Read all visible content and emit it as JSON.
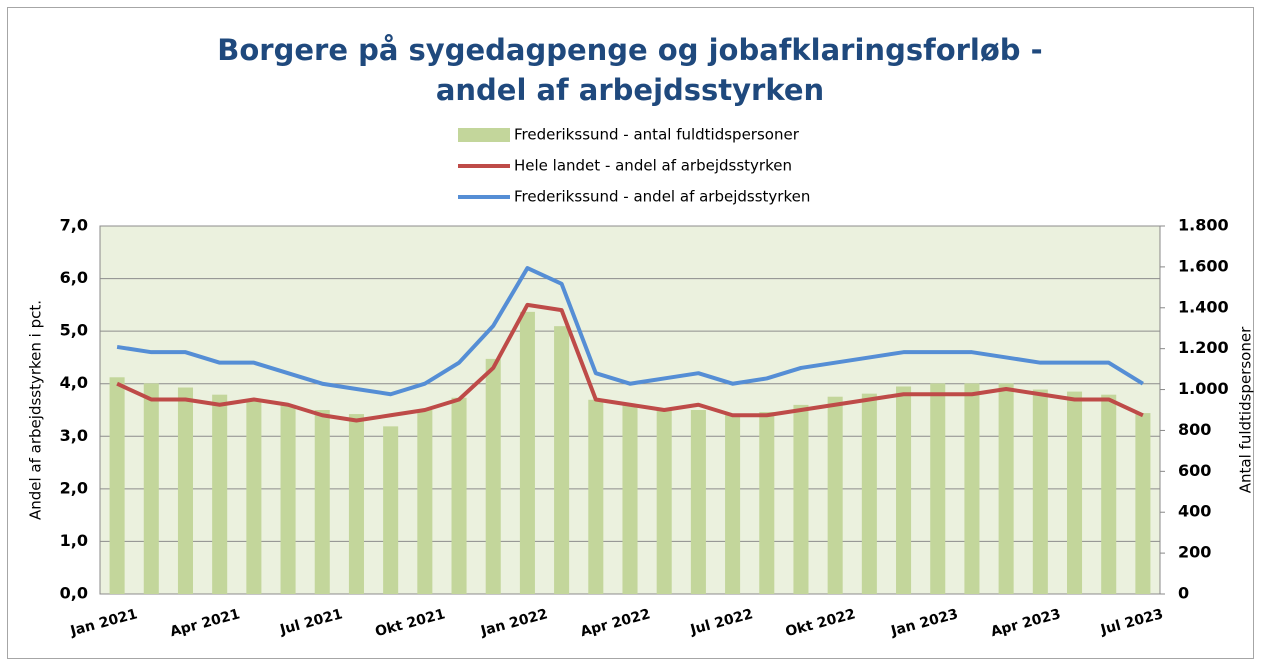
{
  "chart_data": {
    "type": "bar-line",
    "title": "Borgere på sygedagpenge og jobafklaringsforløb - andel af arbejdsstyrken",
    "y_label": "Andel af arbejdsstyrken i pct.",
    "y2_label": "Antal fuldtidspersoner",
    "categories": [
      "Jan 2021",
      null,
      null,
      "Apr 2021",
      null,
      null,
      "Jul 2021",
      null,
      null,
      "Okt 2021",
      null,
      null,
      "Jan 2022",
      null,
      null,
      "Apr 2022",
      null,
      null,
      "Jul 2022",
      null,
      null,
      "Okt 2022",
      null,
      null,
      "Jan 2023",
      null,
      null,
      "Apr 2023",
      null,
      null,
      "Jul 2023"
    ],
    "series": [
      {
        "name": "Frederikssund - antal fuldtidspersoner",
        "type": "bar",
        "axis": "y2",
        "color": "#c3d69b",
        "values": [
          1060,
          1030,
          1010,
          975,
          950,
          925,
          900,
          880,
          820,
          900,
          960,
          1150,
          1380,
          1310,
          950,
          925,
          900,
          900,
          875,
          890,
          925,
          965,
          980,
          1015,
          1030,
          1030,
          1030,
          1000,
          990,
          975,
          885
        ]
      },
      {
        "name": "Hele landet - andel af arbejdsstyrken",
        "type": "line",
        "color": "#be4b48",
        "values": [
          4.0,
          3.7,
          3.7,
          3.6,
          3.7,
          3.6,
          3.4,
          3.3,
          3.4,
          3.5,
          3.7,
          4.3,
          5.5,
          5.4,
          3.7,
          3.6,
          3.5,
          3.6,
          3.4,
          3.4,
          3.5,
          3.6,
          3.7,
          3.8,
          3.8,
          3.8,
          3.9,
          3.8,
          3.7,
          3.7,
          3.4
        ]
      },
      {
        "name": "Frederikssund - andel af arbejdsstyrken",
        "type": "line",
        "color": "#558ed5",
        "values": [
          4.7,
          4.6,
          4.6,
          4.4,
          4.4,
          4.2,
          4.0,
          3.9,
          3.8,
          4.0,
          4.4,
          5.1,
          6.2,
          5.9,
          4.2,
          4.0,
          4.1,
          4.2,
          4.0,
          4.1,
          4.3,
          4.4,
          4.5,
          4.6,
          4.6,
          4.6,
          4.5,
          4.4,
          4.4,
          4.4,
          4.0
        ]
      }
    ],
    "ylim": [
      0,
      7
    ],
    "yticks": [
      {
        "value": 0,
        "label": "0,0"
      },
      {
        "value": 1,
        "label": "1,0"
      },
      {
        "value": 2,
        "label": "2,0"
      },
      {
        "value": 3,
        "label": "3,0"
      },
      {
        "value": 4,
        "label": "4,0"
      },
      {
        "value": 5,
        "label": "5,0"
      },
      {
        "value": 6,
        "label": "6,0"
      },
      {
        "value": 7,
        "label": "7,0"
      }
    ],
    "y2lim": [
      0,
      1800
    ],
    "y2ticks": [
      0,
      200,
      400,
      600,
      800,
      {
        "value": 1000,
        "label": "1.000"
      },
      {
        "value": 1200,
        "label": "1.200"
      },
      {
        "value": 1400,
        "label": "1.400"
      },
      {
        "value": 1600,
        "label": "1.600"
      },
      {
        "value": 1800,
        "label": "1.800"
      }
    ],
    "grid": true,
    "plot_background": "#ebf1de"
  }
}
